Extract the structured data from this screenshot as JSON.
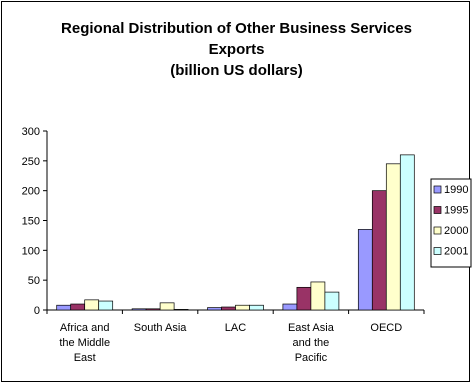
{
  "chart_data": {
    "type": "bar",
    "title_lines": [
      "Regional Distribution of Other Business Services",
      "Exports",
      "(billion US dollars)"
    ],
    "categories": [
      [
        "Africa and",
        "the Middle",
        "East"
      ],
      [
        "South Asia"
      ],
      [
        "LAC"
      ],
      [
        "East Asia",
        "and the",
        "Pacific"
      ],
      [
        "OECD"
      ]
    ],
    "series": [
      {
        "name": "1990",
        "color": "#9999ff",
        "values": [
          8,
          2,
          4,
          10,
          135
        ]
      },
      {
        "name": "1995",
        "color": "#993366",
        "values": [
          10,
          2,
          5,
          38,
          200
        ]
      },
      {
        "name": "2000",
        "color": "#ffffcc",
        "values": [
          17,
          12,
          8,
          47,
          245
        ]
      },
      {
        "name": "2001",
        "color": "#ccffff",
        "values": [
          15,
          1,
          8,
          30,
          260
        ]
      }
    ],
    "yticks": [
      0,
      50,
      100,
      150,
      200,
      250,
      300
    ],
    "ylim": [
      0,
      300
    ],
    "legend_position": "right",
    "grid": false
  }
}
